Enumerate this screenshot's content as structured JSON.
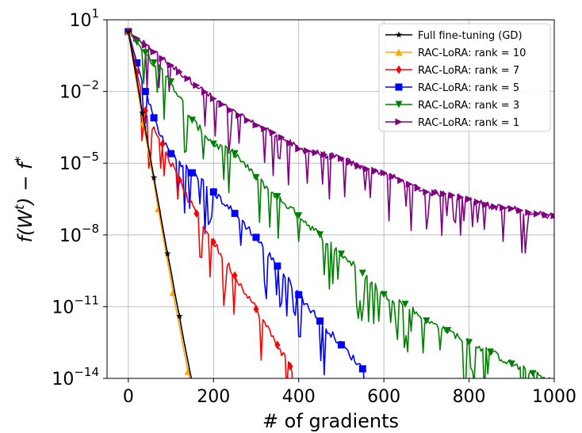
{
  "chart_data": {
    "type": "line",
    "title": "",
    "xlabel": "# of gradients",
    "ylabel": "f(W",
    "ylabel_sup1": "t",
    "ylabel_mid": ") − f",
    "ylabel_sup2": "*",
    "xlim": [
      -50,
      1000
    ],
    "ylim_log10": [
      -14,
      1
    ],
    "yscale": "log",
    "grid": true,
    "legend_position": "top-right",
    "x_ticks": [
      {
        "value": 0,
        "label": "0"
      },
      {
        "value": 200,
        "label": "200"
      },
      {
        "value": 400,
        "label": "400"
      },
      {
        "value": 600,
        "label": "600"
      },
      {
        "value": 800,
        "label": "800"
      },
      {
        "value": 1000,
        "label": "1000"
      }
    ],
    "y_ticks": [
      {
        "exp": 1,
        "base": "10",
        "sup": "1"
      },
      {
        "exp": -2,
        "base": "10",
        "sup": "−2"
      },
      {
        "exp": -5,
        "base": "10",
        "sup": "−5"
      },
      {
        "exp": -8,
        "base": "10",
        "sup": "−8"
      },
      {
        "exp": -11,
        "base": "10",
        "sup": "−11"
      },
      {
        "exp": -14,
        "base": "10",
        "sup": "−14"
      }
    ],
    "series": [
      {
        "name": "Full fine-tuning (GD)",
        "color": "#000000",
        "marker": "star",
        "x": [
          0,
          10,
          20,
          30,
          40,
          50,
          60,
          70,
          80,
          90,
          100,
          110,
          120,
          130,
          140,
          150
        ],
        "log10_y": [
          0.5,
          -0.5,
          -1.5,
          -2.6,
          -3.6,
          -4.6,
          -5.6,
          -6.6,
          -7.6,
          -8.6,
          -9.5,
          -10.5,
          -11.4,
          -12.4,
          -13.3,
          -14.2
        ],
        "markers_x": [
          0,
          33,
          60,
          92,
          120,
          150
        ]
      },
      {
        "name": "RAC-LoRA: rank = 10",
        "color": "#ffa500",
        "marker": "triangle-up",
        "x": [
          0,
          10,
          20,
          30,
          40,
          50,
          60,
          70,
          80,
          90,
          100,
          110,
          120,
          130,
          140,
          150
        ],
        "log10_y": [
          0.5,
          -0.6,
          -1.7,
          -2.8,
          -3.8,
          -4.8,
          -5.8,
          -6.9,
          -7.9,
          -8.9,
          -9.9,
          -10.9,
          -11.8,
          -12.8,
          -13.7,
          -14.6
        ],
        "markers_x": [
          0,
          35,
          70,
          105,
          140
        ]
      },
      {
        "name": "RAC-LoRA: rank = 7",
        "color": "#ff0000",
        "marker": "diamond",
        "x": [
          0,
          20,
          40,
          60,
          80,
          100,
          120,
          140,
          160,
          180,
          200,
          220,
          240,
          260,
          280,
          300,
          320,
          340,
          360,
          380,
          400
        ],
        "log10_y": [
          0.5,
          -1.2,
          -2.8,
          -3.6,
          -4.2,
          -5.0,
          -5.7,
          -6.5,
          -7.1,
          -7.7,
          -8.3,
          -8.9,
          -9.4,
          -10.0,
          -10.5,
          -11.1,
          -11.7,
          -12.3,
          -12.9,
          -13.5,
          -14.3
        ],
        "markers_x": [
          0,
          20,
          40,
          80,
          120,
          160,
          200,
          250,
          300,
          350,
          380
        ]
      },
      {
        "name": "RAC-LoRA: rank = 5",
        "color": "#0000ff",
        "marker": "square",
        "x": [
          0,
          20,
          40,
          60,
          80,
          100,
          150,
          200,
          250,
          300,
          350,
          400,
          450,
          500,
          550,
          580
        ],
        "log10_y": [
          0.5,
          -0.8,
          -2.0,
          -3.1,
          -4.0,
          -4.6,
          -5.4,
          -6.2,
          -7.1,
          -8.1,
          -9.3,
          -10.5,
          -11.6,
          -12.6,
          -13.6,
          -14.3
        ],
        "markers_x": [
          0,
          20,
          40,
          60,
          100,
          150,
          200,
          250,
          300,
          350,
          400,
          450,
          500,
          550
        ]
      },
      {
        "name": "RAC-LoRA: rank = 3",
        "color": "#008000",
        "marker": "triangle-down",
        "x": [
          0,
          50,
          100,
          150,
          200,
          250,
          300,
          350,
          400,
          450,
          500,
          550,
          600,
          650,
          700,
          750,
          800,
          850,
          900,
          950,
          1000
        ],
        "log10_y": [
          0.5,
          -0.6,
          -1.6,
          -3.2,
          -4.2,
          -4.6,
          -5.6,
          -6.4,
          -7.2,
          -8.0,
          -8.8,
          -9.6,
          -10.5,
          -10.9,
          -11.6,
          -12.0,
          -12.5,
          -12.9,
          -13.4,
          -13.8,
          -14.2
        ],
        "markers_x": [
          0,
          20,
          40,
          60,
          100,
          150,
          200,
          250,
          300,
          350,
          400,
          450,
          500,
          550,
          600,
          650,
          700,
          750,
          800,
          850,
          900,
          950,
          1000
        ]
      },
      {
        "name": "RAC-LoRA: rank = 1",
        "color": "#800080",
        "marker": "triangle-right",
        "x": [
          0,
          50,
          100,
          150,
          200,
          250,
          300,
          350,
          400,
          450,
          500,
          550,
          600,
          650,
          700,
          750,
          800,
          850,
          900,
          950,
          1000
        ],
        "log10_y": [
          0.5,
          -0.2,
          -0.9,
          -1.6,
          -2.3,
          -2.9,
          -3.4,
          -3.8,
          -4.4,
          -4.6,
          -4.8,
          -5.2,
          -5.4,
          -5.8,
          -6.2,
          -6.3,
          -6.5,
          -6.8,
          -6.9,
          -7.1,
          -7.2
        ],
        "markers_x": [
          0,
          20,
          40,
          60,
          80,
          100,
          120,
          140,
          160,
          180,
          200,
          220,
          240,
          260,
          280,
          300,
          320,
          340,
          360,
          380,
          400,
          420,
          440,
          460,
          480,
          500,
          520,
          540,
          560,
          580,
          600,
          620,
          640,
          660,
          680,
          700,
          720,
          740,
          760,
          780,
          800,
          820,
          840,
          860,
          880,
          900,
          920,
          940,
          960,
          980,
          1000
        ]
      }
    ]
  }
}
